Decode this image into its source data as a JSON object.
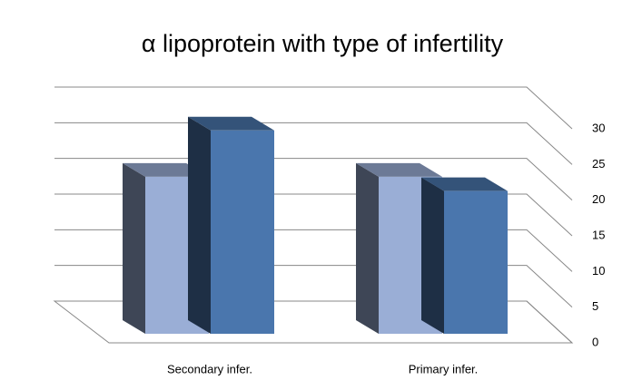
{
  "chart_data": {
    "type": "bar3d",
    "title": "α lipoprotein with type of infertility",
    "categories": [
      "Secondary infer.",
      "Primary infer."
    ],
    "series": [
      {
        "color": "#9aaed6",
        "values": [
          22,
          22
        ]
      },
      {
        "color": "#4a76ad",
        "values": [
          28.5,
          20
        ]
      }
    ],
    "ylim": [
      0,
      30
    ],
    "yticks": [
      0,
      5,
      10,
      15,
      20,
      25,
      30
    ],
    "grid": true
  }
}
